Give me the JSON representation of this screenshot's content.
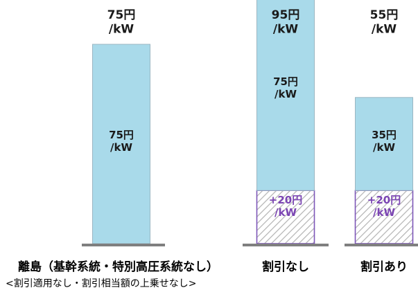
{
  "chart_data": {
    "type": "bar",
    "unit_label": "/kW",
    "categories": [
      "離島（基幹系統・特別高圧系統なし）",
      "割引なし",
      "割引あり"
    ],
    "category_note": "<割引適用なし・割引相当額の上乗せなし>",
    "series": [
      {
        "name": "",
        "values": [
          75,
          75,
          35
        ]
      },
      {
        "name": "",
        "values": [
          0,
          20,
          20
        ]
      }
    ],
    "base_labels": [
      "75円",
      "75円",
      "35円"
    ],
    "surcharge_labels": [
      "",
      "+20円",
      "+20円"
    ],
    "total_labels": [
      "75円",
      "95円",
      "55円"
    ],
    "ylim": [
      0,
      100
    ],
    "grid": false,
    "colors": {
      "base": "#a9daea",
      "base_stroke": "#9bb6c2",
      "surcharge_pattern": "#b3b3b3",
      "surcharge_stroke": "#7d56b8",
      "surcharge_text": "#7b45b3",
      "baseline": "#7f7f7f",
      "text": "#1a1a1a"
    }
  }
}
